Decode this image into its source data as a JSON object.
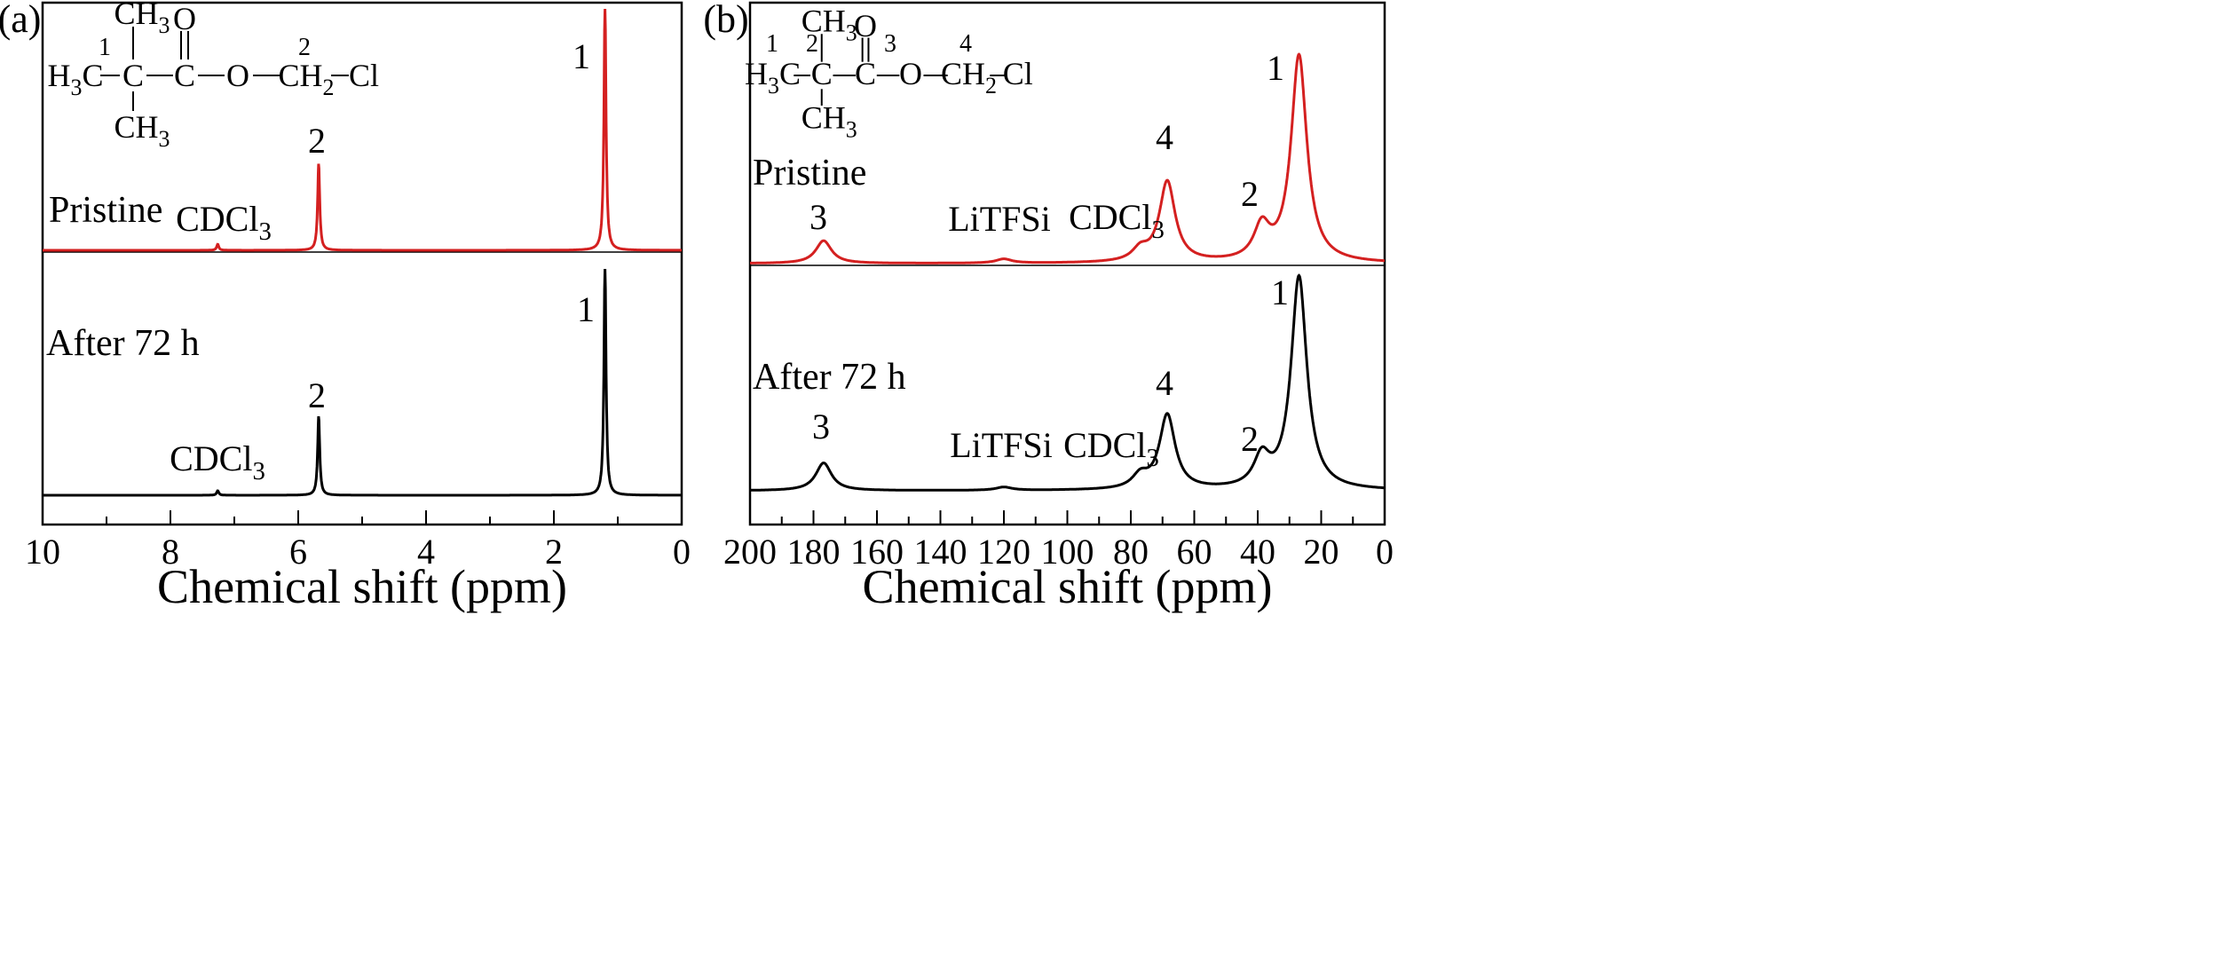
{
  "chart_data": [
    {
      "id": "a",
      "type": "line",
      "panel_label": "(a)",
      "xlabel": "Chemical shift (ppm)",
      "xlim": [
        10,
        0
      ],
      "x_reversed": true,
      "x_ticks": [
        10,
        8,
        6,
        4,
        2,
        0
      ],
      "minor_tick_step": 1,
      "structure": {
        "atoms": {
          "h3c_main": "H",
          "h3c_sub": "3",
          "h3c_tail": "C",
          "c": "C",
          "ch3_top_main": "CH",
          "ch3_top_sub": "3",
          "ch3_bottom_main": "CH",
          "ch3_bottom_sub": "3",
          "carbonyl_c": "C",
          "carbonyl_o": "O",
          "ester_o": "O",
          "ch2_main": "CH",
          "ch2_sub": "2",
          "cl": "Cl"
        },
        "numbers": [
          "1",
          "2"
        ]
      },
      "series": [
        {
          "name": "Pristine",
          "color": "#d42020",
          "peaks": [
            {
              "ppm": 1.2,
              "height": 1.0,
              "label": "1"
            },
            {
              "ppm": 5.68,
              "height": 0.36,
              "label": "2"
            },
            {
              "ppm": 7.26,
              "height": 0.025,
              "label": "CDCl3"
            }
          ]
        },
        {
          "name": "After 72 h",
          "color": "#000000",
          "peaks": [
            {
              "ppm": 1.2,
              "height": 1.0,
              "label": "1"
            },
            {
              "ppm": 5.68,
              "height": 0.35,
              "label": "2"
            },
            {
              "ppm": 7.26,
              "height": 0.02,
              "label": "CDCl3"
            }
          ]
        }
      ]
    },
    {
      "id": "b",
      "type": "line",
      "panel_label": "(b)",
      "xlabel": "Chemical shift (ppm)",
      "xlim": [
        200,
        0
      ],
      "x_reversed": true,
      "x_ticks": [
        200,
        180,
        160,
        140,
        120,
        100,
        80,
        60,
        40,
        20,
        0
      ],
      "minor_tick_step": 10,
      "structure": {
        "atoms": {
          "h3c_main": "H",
          "h3c_sub": "3",
          "h3c_tail": "C",
          "c": "C",
          "ch3_top_main": "CH",
          "ch3_top_sub": "3",
          "ch3_bottom_main": "CH",
          "ch3_bottom_sub": "3",
          "carbonyl_c": "C",
          "carbonyl_o": "O",
          "ester_o": "O",
          "ch2_main": "CH",
          "ch2_sub": "2",
          "cl": "Cl"
        },
        "numbers": [
          "1",
          "2",
          "3",
          "4"
        ]
      },
      "series": [
        {
          "name": "Pristine",
          "color": "#d42020",
          "peaks": [
            {
              "ppm": 27.0,
              "height": 1.0,
              "label": "1"
            },
            {
              "ppm": 38.7,
              "height": 0.16,
              "label": "2"
            },
            {
              "ppm": 176.8,
              "height": 0.11,
              "label": "3"
            },
            {
              "ppm": 68.5,
              "height": 0.39,
              "label": "4"
            },
            {
              "ppm": 77.0,
              "height": 0.055,
              "label": "CDCl3"
            },
            {
              "ppm": 120.0,
              "height": 0.02,
              "label": "LiTFSi"
            }
          ]
        },
        {
          "name": "After 72 h",
          "color": "#000000",
          "peaks": [
            {
              "ppm": 27.0,
              "height": 1.0,
              "label": "1"
            },
            {
              "ppm": 38.7,
              "height": 0.14,
              "label": "2"
            },
            {
              "ppm": 176.8,
              "height": 0.13,
              "label": "3"
            },
            {
              "ppm": 68.5,
              "height": 0.35,
              "label": "4"
            },
            {
              "ppm": 77.0,
              "height": 0.06,
              "label": "CDCl3"
            },
            {
              "ppm": 120.0,
              "height": 0.015,
              "label": "LiTFSi"
            }
          ]
        }
      ]
    }
  ]
}
